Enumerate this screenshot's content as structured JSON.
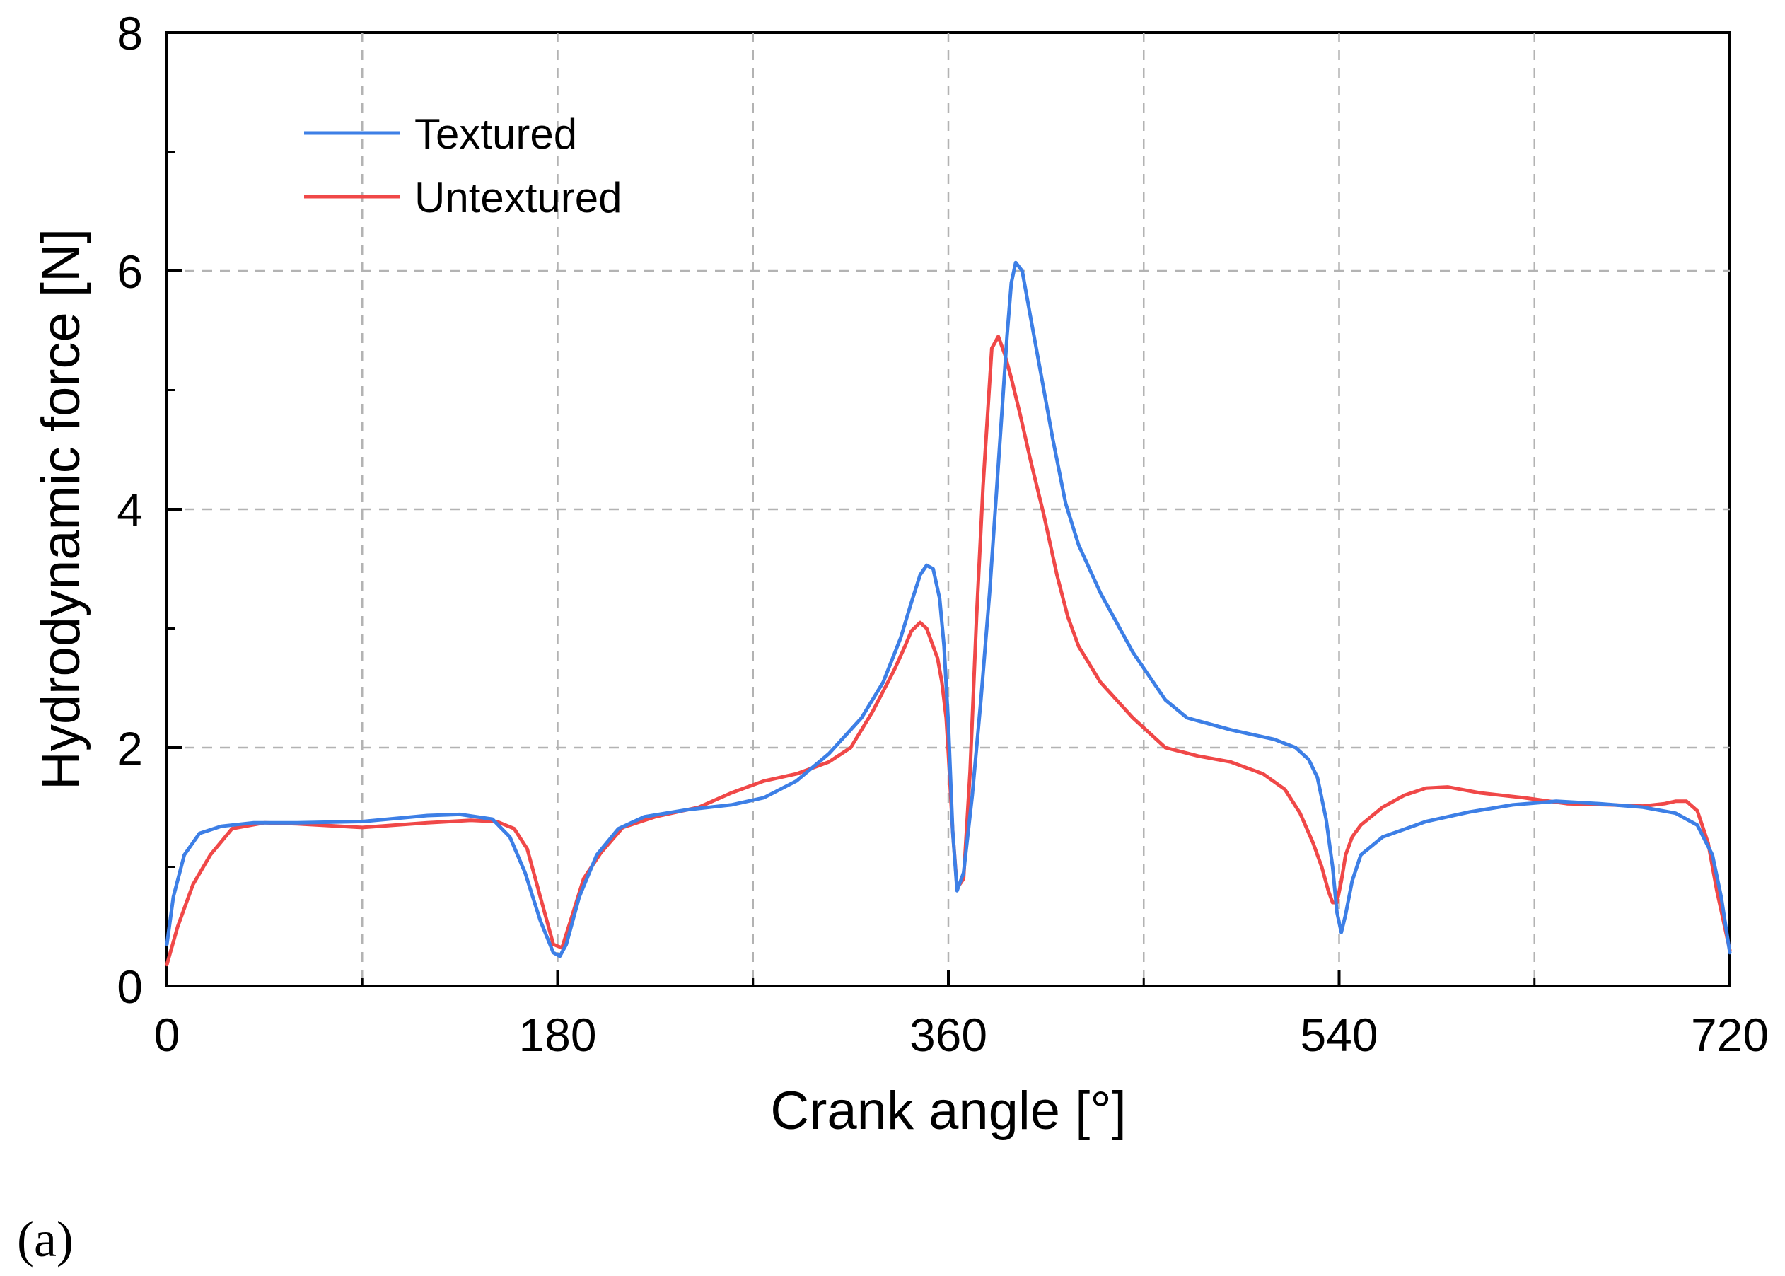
{
  "panel_label": "(a)",
  "chart_data": {
    "type": "line",
    "title": "",
    "xlabel": "Crank angle [°]",
    "ylabel": "Hydrodynamic force [N]",
    "xlim": [
      0,
      720
    ],
    "ylim": [
      0,
      8
    ],
    "xticks": [
      0,
      180,
      360,
      540,
      720
    ],
    "xtick_labels": [
      "0",
      "180",
      "360",
      "540",
      "720"
    ],
    "xminor": [
      90,
      270,
      450,
      630
    ],
    "yticks": [
      0,
      2,
      4,
      6,
      8
    ],
    "ytick_labels": [
      "0",
      "2",
      "4",
      "6",
      "8"
    ],
    "yminor": [
      1,
      3,
      5,
      7
    ],
    "grid": true,
    "legend_position": "top-left",
    "series": [
      {
        "name": "Textured",
        "color": "#3d7fe6",
        "x": [
          0,
          3,
          8,
          15,
          25,
          40,
          60,
          90,
          120,
          135,
          150,
          158,
          165,
          172,
          178,
          181,
          184,
          190,
          198,
          208,
          220,
          240,
          260,
          275,
          290,
          305,
          320,
          330,
          338,
          343,
          347,
          350,
          353,
          356,
          358,
          360,
          362,
          364,
          367,
          371,
          375,
          379,
          382,
          385,
          387,
          389,
          391,
          394,
          398,
          403,
          408,
          414,
          420,
          430,
          445,
          460,
          470,
          490,
          510,
          520,
          526,
          530,
          534,
          537,
          539,
          541,
          543,
          546,
          550,
          560,
          580,
          600,
          620,
          640,
          660,
          680,
          695,
          705,
          712,
          716,
          720
        ],
        "y": [
          0.35,
          0.75,
          1.1,
          1.28,
          1.34,
          1.37,
          1.37,
          1.38,
          1.43,
          1.44,
          1.4,
          1.25,
          0.95,
          0.55,
          0.28,
          0.25,
          0.35,
          0.75,
          1.1,
          1.32,
          1.42,
          1.48,
          1.52,
          1.58,
          1.72,
          1.95,
          2.25,
          2.55,
          2.92,
          3.22,
          3.45,
          3.53,
          3.5,
          3.25,
          2.85,
          2.2,
          1.3,
          0.8,
          0.95,
          1.6,
          2.4,
          3.3,
          4.1,
          4.9,
          5.45,
          5.9,
          6.07,
          6.0,
          5.6,
          5.1,
          4.6,
          4.05,
          3.7,
          3.3,
          2.8,
          2.4,
          2.25,
          2.15,
          2.07,
          2.0,
          1.9,
          1.75,
          1.4,
          1.0,
          0.62,
          0.45,
          0.6,
          0.88,
          1.1,
          1.25,
          1.38,
          1.46,
          1.52,
          1.55,
          1.53,
          1.5,
          1.45,
          1.35,
          1.1,
          0.75,
          0.28
        ]
      },
      {
        "name": "Untextured",
        "color": "#f04848",
        "x": [
          0,
          5,
          12,
          20,
          30,
          45,
          60,
          90,
          120,
          140,
          152,
          160,
          166,
          172,
          178,
          182,
          186,
          192,
          200,
          210,
          225,
          245,
          260,
          275,
          290,
          305,
          315,
          325,
          335,
          340,
          343,
          347,
          350,
          353,
          355,
          357,
          359,
          360,
          362,
          364,
          367,
          370,
          373,
          376,
          380,
          383,
          386,
          389,
          393,
          398,
          404,
          410,
          415,
          420,
          430,
          445,
          460,
          475,
          490,
          505,
          515,
          522,
          528,
          532,
          535,
          537,
          539,
          541,
          543,
          546,
          550,
          560,
          570,
          580,
          590,
          605,
          625,
          645,
          665,
          680,
          690,
          695,
          700,
          705,
          710,
          714,
          720
        ],
        "y": [
          0.18,
          0.5,
          0.85,
          1.1,
          1.32,
          1.37,
          1.36,
          1.33,
          1.37,
          1.39,
          1.38,
          1.32,
          1.15,
          0.75,
          0.35,
          0.32,
          0.55,
          0.9,
          1.12,
          1.33,
          1.42,
          1.5,
          1.62,
          1.72,
          1.78,
          1.88,
          2.0,
          2.3,
          2.65,
          2.85,
          2.98,
          3.05,
          3.0,
          2.85,
          2.75,
          2.55,
          2.25,
          1.95,
          1.3,
          0.82,
          0.9,
          1.8,
          3.1,
          4.2,
          5.35,
          5.45,
          5.3,
          5.1,
          4.8,
          4.4,
          3.95,
          3.45,
          3.1,
          2.85,
          2.55,
          2.25,
          2.0,
          1.93,
          1.88,
          1.78,
          1.65,
          1.45,
          1.2,
          1.0,
          0.8,
          0.7,
          0.7,
          0.88,
          1.1,
          1.25,
          1.35,
          1.5,
          1.6,
          1.66,
          1.67,
          1.62,
          1.58,
          1.53,
          1.52,
          1.51,
          1.53,
          1.55,
          1.55,
          1.47,
          1.2,
          0.8,
          0.3
        ]
      }
    ]
  }
}
